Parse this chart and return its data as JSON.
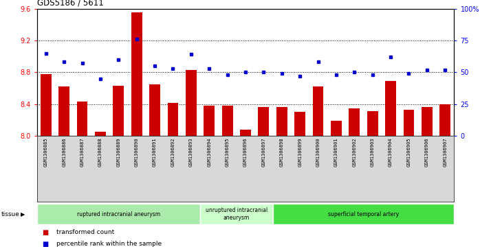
{
  "title": "GDS5186 / 5611",
  "samples": [
    "GSM1306885",
    "GSM1306886",
    "GSM1306887",
    "GSM1306888",
    "GSM1306889",
    "GSM1306890",
    "GSM1306891",
    "GSM1306892",
    "GSM1306893",
    "GSM1306894",
    "GSM1306895",
    "GSM1306896",
    "GSM1306897",
    "GSM1306898",
    "GSM1306899",
    "GSM1306900",
    "GSM1306901",
    "GSM1306902",
    "GSM1306903",
    "GSM1306904",
    "GSM1306905",
    "GSM1306906",
    "GSM1306907"
  ],
  "bar_values": [
    8.78,
    8.62,
    8.43,
    8.05,
    8.63,
    9.55,
    8.65,
    8.41,
    8.83,
    8.38,
    8.38,
    8.08,
    8.36,
    8.36,
    8.3,
    8.62,
    8.19,
    8.34,
    8.31,
    8.69,
    8.33,
    8.36,
    8.4
  ],
  "dot_values": [
    65,
    58,
    57,
    45,
    60,
    76,
    55,
    53,
    64,
    53,
    48,
    50,
    50,
    49,
    47,
    58,
    48,
    50,
    48,
    62,
    49,
    52,
    52
  ],
  "ylim_left": [
    8.0,
    9.6
  ],
  "ylim_right": [
    0,
    100
  ],
  "yticks_left": [
    8.0,
    8.4,
    8.8,
    9.2,
    9.6
  ],
  "yticks_right": [
    0,
    25,
    50,
    75,
    100
  ],
  "ytick_labels_right": [
    "0",
    "25",
    "50",
    "75",
    "100%"
  ],
  "bar_color": "#cc0000",
  "dot_color": "#0000cc",
  "n_samples": 23,
  "group_starts": [
    0,
    9,
    13
  ],
  "group_ends": [
    9,
    13,
    23
  ],
  "group_labels": [
    "ruptured intracranial aneurysm",
    "unruptured intracranial\naneurysm",
    "superficial temporal artery"
  ],
  "group_colors": [
    "#aaeaaa",
    "#ccffcc",
    "#44dd44"
  ],
  "tissue_label": "tissue",
  "legend_bar_label": "transformed count",
  "legend_dot_label": "percentile rank within the sample"
}
